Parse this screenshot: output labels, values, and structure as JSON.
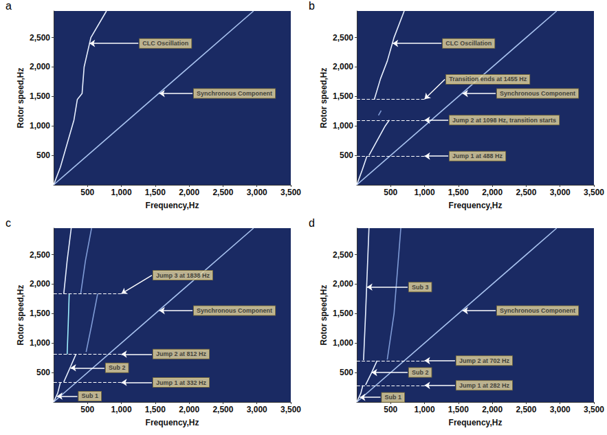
{
  "chart_data": [
    {
      "panel": "a",
      "type": "line",
      "x_label": "Frequency,Hz",
      "y_label": "Rotor speed,Hz",
      "xlim": [
        0,
        3500
      ],
      "xticks": [
        500,
        1000,
        1500,
        2000,
        2500,
        3000,
        3500
      ],
      "ylim": [
        0,
        2950
      ],
      "yticks": [
        500,
        1000,
        1500,
        2000,
        2500
      ],
      "grid": false,
      "series": [
        {
          "color": "#a9c3f0",
          "x": [
            0,
            2950
          ],
          "values": [
            0,
            2950
          ]
        },
        {
          "color": "#e8f0ff",
          "x": [
            0,
            100,
            200,
            300,
            350,
            420,
            450,
            550,
            780
          ],
          "values": [
            0,
            300,
            700,
            1100,
            1450,
            1550,
            2000,
            2500,
            2950
          ]
        }
      ],
      "annotations": [
        {
          "text": "CLC Oscillation",
          "text_at": [
            1250,
            2400
          ],
          "arrow_to": [
            530,
            2400
          ]
        },
        {
          "text": "Synchronous Component",
          "text_at": [
            2050,
            1550
          ],
          "arrow_to": [
            1560,
            1550
          ]
        }
      ],
      "jump_lines": []
    },
    {
      "panel": "b",
      "type": "line",
      "x_label": "Frequency,Hz",
      "y_label": "Rotor speed,Hz",
      "xlim": [
        0,
        3500
      ],
      "xticks": [
        500,
        1000,
        1500,
        2000,
        2500,
        3000,
        3500
      ],
      "ylim": [
        0,
        2950
      ],
      "yticks": [
        500,
        1000,
        1500,
        2000,
        2500
      ],
      "grid": false,
      "series": [
        {
          "color": "#a9c3f0",
          "x": [
            0,
            2950
          ],
          "values": [
            0,
            2950
          ]
        },
        {
          "color": "#e8f0ff",
          "x": [
            0,
            80,
            150
          ],
          "values": [
            0,
            250,
            488
          ]
        },
        {
          "color": "#e8f0ff",
          "x": [
            180,
            300,
            420,
            480
          ],
          "values": [
            500,
            750,
            1000,
            1098
          ]
        },
        {
          "color": "#7f9bd6",
          "x": [
            320,
            360
          ],
          "values": [
            1180,
            1260
          ]
        },
        {
          "color": "#e8f0ff",
          "x": [
            260,
            350,
            450,
            550,
            700
          ],
          "values": [
            1455,
            1800,
            2100,
            2500,
            2950
          ]
        }
      ],
      "annotations": [
        {
          "text": "CLC Oscillation",
          "text_at": [
            1250,
            2400
          ],
          "arrow_to": [
            530,
            2400
          ]
        },
        {
          "text": "Transition ends at 1455 Hz",
          "text_at": [
            1300,
            1790
          ],
          "arrow_to": [
            1000,
            1455
          ]
        },
        {
          "text": "Synchronous Component",
          "text_at": [
            2050,
            1550
          ],
          "arrow_to": [
            1560,
            1550
          ]
        },
        {
          "text": "Jump 2 at 1098 Hz, transition starts",
          "text_at": [
            1350,
            1098
          ],
          "arrow_to": [
            1000,
            1098
          ]
        },
        {
          "text": "Jump 1 at 488 Hz",
          "text_at": [
            1350,
            488
          ],
          "arrow_to": [
            1000,
            488
          ]
        }
      ],
      "jump_lines": [
        {
          "y": 1455,
          "x_end": 1000,
          "line_style": "dashed"
        },
        {
          "y": 1098,
          "x_end": 1000,
          "line_style": "dashed"
        },
        {
          "y": 488,
          "x_end": 1000,
          "line_style": "dashed"
        }
      ]
    },
    {
      "panel": "c",
      "type": "line",
      "x_label": "Frequency,Hz",
      "y_label": "Rotor speed,Hz",
      "xlim": [
        0,
        3500
      ],
      "xticks": [
        500,
        1000,
        1500,
        2000,
        2500,
        3000,
        3500
      ],
      "ylim": [
        0,
        2950
      ],
      "yticks": [
        500,
        1000,
        1500,
        2000,
        2500
      ],
      "grid": false,
      "series": [
        {
          "color": "#a9c3f0",
          "x": [
            0,
            2950
          ],
          "values": [
            0,
            2950
          ]
        },
        {
          "color": "#e8f0ff",
          "x": [
            0,
            60,
            100
          ],
          "values": [
            0,
            150,
            332
          ]
        },
        {
          "color": "#e8f0ff",
          "x": [
            150,
            250,
            330
          ],
          "values": [
            340,
            600,
            812
          ]
        },
        {
          "color": "#9ff0ff",
          "x": [
            200,
            215,
            230
          ],
          "values": [
            812,
            1300,
            1838
          ]
        },
        {
          "color": "#7f9bd6",
          "x": [
            480,
            560,
            650
          ],
          "values": [
            850,
            1300,
            1838
          ]
        },
        {
          "color": "#e8f0ff",
          "x": [
            150,
            200,
            260
          ],
          "values": [
            1838,
            2400,
            2950
          ]
        },
        {
          "color": "#7f9bd6",
          "x": [
            400,
            470,
            560
          ],
          "values": [
            1838,
            2400,
            2950
          ]
        }
      ],
      "annotations": [
        {
          "text": "Jump 3 at 1838 Hz",
          "text_at": [
            1450,
            2150
          ],
          "arrow_to": [
            1000,
            1838
          ]
        },
        {
          "text": "Synchronous Component",
          "text_at": [
            2050,
            1550
          ],
          "arrow_to": [
            1560,
            1550
          ]
        },
        {
          "text": "Jump 2 at 812 Hz",
          "text_at": [
            1450,
            812
          ],
          "arrow_to": [
            1000,
            812
          ]
        },
        {
          "text": "Sub 2",
          "text_at": [
            750,
            580
          ],
          "arrow_to": [
            250,
            580
          ]
        },
        {
          "text": "Jump 1 at 332 Hz",
          "text_at": [
            1450,
            332
          ],
          "arrow_to": [
            1000,
            332
          ]
        },
        {
          "text": "Sub 1",
          "text_at": [
            350,
            100
          ],
          "arrow_to": [
            50,
            100
          ]
        }
      ],
      "jump_lines": [
        {
          "y": 1838,
          "x_end": 1000,
          "line_style": "dashed"
        },
        {
          "y": 812,
          "x_end": 1000,
          "line_style": "dashed"
        },
        {
          "y": 332,
          "x_end": 1000,
          "line_style": "dashed"
        }
      ]
    },
    {
      "panel": "d",
      "type": "line",
      "x_label": "Frequency,Hz",
      "y_label": "Rotor speed,Hz",
      "xlim": [
        0,
        3500
      ],
      "xticks": [
        500,
        1000,
        1500,
        2000,
        2500,
        3000,
        3500
      ],
      "ylim": [
        0,
        2950
      ],
      "yticks": [
        500,
        1000,
        1500,
        2000,
        2500
      ],
      "grid": false,
      "series": [
        {
          "color": "#a9c3f0",
          "x": [
            0,
            2950
          ],
          "values": [
            0,
            2950
          ]
        },
        {
          "color": "#e8f0ff",
          "x": [
            0,
            60,
            90
          ],
          "values": [
            0,
            150,
            282
          ]
        },
        {
          "color": "#e8f0ff",
          "x": [
            130,
            220,
            300
          ],
          "values": [
            290,
            500,
            702
          ]
        },
        {
          "color": "#e8f0ff",
          "x": [
            100,
            130,
            180
          ],
          "values": [
            710,
            1500,
            2950
          ]
        },
        {
          "color": "#7f9bd6",
          "x": [
            450,
            550,
            650
          ],
          "values": [
            720,
            1500,
            2950
          ]
        }
      ],
      "annotations": [
        {
          "text": "Sub 3",
          "text_at": [
            750,
            1950
          ],
          "arrow_to": [
            150,
            1950
          ]
        },
        {
          "text": "Synchronous Component",
          "text_at": [
            2050,
            1550
          ],
          "arrow_to": [
            1560,
            1550
          ]
        },
        {
          "text": "Jump 2 at 702 Hz",
          "text_at": [
            1450,
            702
          ],
          "arrow_to": [
            1000,
            702
          ]
        },
        {
          "text": "Sub 2",
          "text_at": [
            750,
            500
          ],
          "arrow_to": [
            220,
            500
          ]
        },
        {
          "text": "Jump 1 at 282 Hz",
          "text_at": [
            1450,
            282
          ],
          "arrow_to": [
            1000,
            282
          ]
        },
        {
          "text": "Sub 1",
          "text_at": [
            350,
            80
          ],
          "arrow_to": [
            45,
            80
          ]
        }
      ],
      "jump_lines": [
        {
          "y": 702,
          "x_end": 1000,
          "line_style": "dashed"
        },
        {
          "y": 282,
          "x_end": 1000,
          "line_style": "dashed"
        }
      ]
    }
  ]
}
